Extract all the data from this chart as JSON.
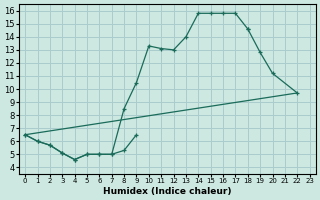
{
  "bg_color": "#cce8e0",
  "grid_color": "#aacccc",
  "line_color": "#1a6b5a",
  "xlabel": "Humidex (Indice chaleur)",
  "xlim": [
    -0.5,
    23.5
  ],
  "ylim": [
    3.5,
    16.5
  ],
  "xticks": [
    0,
    1,
    2,
    3,
    4,
    5,
    6,
    7,
    8,
    9,
    10,
    11,
    12,
    13,
    14,
    15,
    16,
    17,
    18,
    19,
    20,
    21,
    22,
    23
  ],
  "yticks": [
    4,
    5,
    6,
    7,
    8,
    9,
    10,
    11,
    12,
    13,
    14,
    15,
    16
  ],
  "curve1_x": [
    0,
    1,
    2,
    3,
    4,
    5,
    6,
    7,
    8,
    9,
    10,
    11,
    12,
    13,
    14,
    15,
    16,
    17,
    18
  ],
  "curve1_y": [
    6.5,
    6.0,
    5.7,
    5.1,
    4.6,
    5.0,
    5.0,
    5.0,
    8.5,
    10.5,
    13.3,
    13.1,
    13.0,
    14.0,
    15.8,
    15.8,
    15.8,
    15.8,
    14.6
  ],
  "curve2_x": [
    0,
    1,
    2,
    3,
    4,
    5,
    6,
    7,
    8,
    9,
    18,
    19,
    20,
    22
  ],
  "curve2_y": [
    6.5,
    6.0,
    5.7,
    5.1,
    4.6,
    5.0,
    5.0,
    5.0,
    5.3,
    6.5,
    14.6,
    12.8,
    11.2,
    9.7
  ],
  "curve3_x": [
    0,
    22
  ],
  "curve3_y": [
    6.5,
    9.7
  ]
}
